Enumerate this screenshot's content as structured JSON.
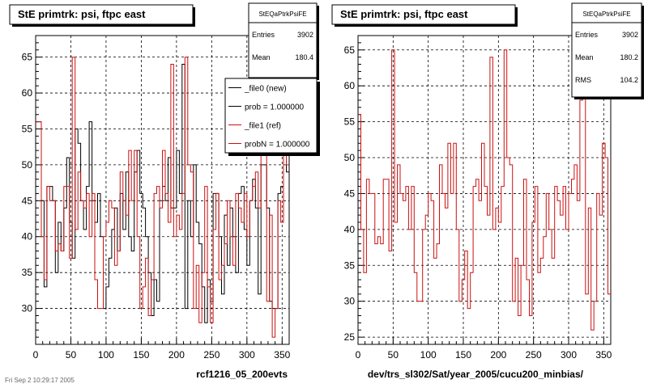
{
  "colors": {
    "file0": "#000000",
    "file1": "#cc1111",
    "grid": "#000000",
    "frame": "#000000"
  },
  "chart_data": [
    {
      "type": "histogram",
      "title": "StE primtrk: psi, ftpc east",
      "xlabel": "rcf1216_05_200evts",
      "xlim": [
        0,
        360
      ],
      "ylim": [
        25,
        68
      ],
      "xticks": [
        0,
        50,
        100,
        150,
        200,
        250,
        300,
        350
      ],
      "yticks": [
        30,
        35,
        40,
        45,
        50,
        55,
        60,
        65
      ],
      "grid": true,
      "stats": {
        "name": "StEQaPtrkPsiFE",
        "rows": [
          {
            "label": "Entries",
            "value": "3902"
          },
          {
            "label": "Mean",
            "value": "180.4"
          }
        ]
      },
      "legend": [
        {
          "text": "_file0 (new)",
          "color": "#000000"
        },
        {
          "text": "prob = 1.000000",
          "color": "#000000"
        },
        {
          "text": "_file1 (ref)",
          "color": "#cc1111"
        },
        {
          "text": "probN = 1.000000",
          "color": "#cc1111"
        }
      ],
      "bin_width": 4,
      "series": [
        {
          "name": "_file0 (new)",
          "color": "#000000",
          "values": [
            56,
            56,
            45,
            33,
            47,
            47,
            45,
            35,
            42,
            38,
            44,
            51,
            42,
            37,
            55,
            53,
            45,
            41,
            47,
            56,
            45,
            42,
            46,
            40,
            30,
            33,
            37,
            41,
            44,
            38,
            46,
            41,
            49,
            40,
            38,
            49,
            52,
            46,
            44,
            40,
            35,
            29,
            34,
            31,
            45,
            47,
            45,
            51,
            44,
            44,
            52,
            46,
            64,
            30,
            45,
            40,
            50,
            42,
            39,
            33,
            28,
            34,
            31,
            46,
            46,
            40,
            32,
            43,
            36,
            44,
            40,
            35,
            46,
            47,
            41,
            36,
            45,
            48,
            44,
            32,
            50,
            50,
            44,
            31,
            30,
            30,
            46,
            47,
            53,
            49
          ]
        },
        {
          "name": "_file1 (ref)",
          "color": "#cc1111",
          "values": [
            56,
            56,
            40,
            34,
            47,
            45,
            45,
            38,
            39,
            38,
            47,
            47,
            37,
            65,
            41,
            49,
            45,
            44,
            46,
            40,
            46,
            34,
            30,
            30,
            40,
            42,
            45,
            44,
            36,
            38,
            49,
            45,
            43,
            52,
            45,
            52,
            40,
            30,
            33,
            37,
            29,
            34,
            46,
            47,
            44,
            52,
            46,
            42,
            64,
            40,
            43,
            41,
            46,
            65,
            50,
            49,
            30,
            36,
            28,
            35,
            47,
            33,
            28,
            41,
            46,
            34,
            36,
            39,
            45,
            40,
            36,
            46,
            44,
            42,
            46,
            40,
            45,
            47,
            49,
            44,
            58,
            60,
            31,
            43,
            26,
            30,
            45,
            42,
            52,
            50
          ]
        }
      ]
    },
    {
      "type": "histogram",
      "title": "StE primtrk: psi, ftpc east",
      "xlabel": "dev/trs_sl302/Sat/year_2005/cucu200_minbias/",
      "xlim": [
        0,
        360
      ],
      "ylim": [
        24,
        67
      ],
      "xticks": [
        0,
        50,
        100,
        150,
        200,
        250,
        300,
        350
      ],
      "yticks": [
        25,
        30,
        35,
        40,
        45,
        50,
        55,
        60,
        65
      ],
      "grid": true,
      "stats": {
        "name": "StEQaPtrkPsiFE",
        "rows": [
          {
            "label": "Entries",
            "value": "3902"
          },
          {
            "label": "Mean",
            "value": "180.2"
          },
          {
            "label": "RMS",
            "value": "104.2"
          }
        ]
      },
      "legend": [],
      "bin_width": 4,
      "series": [
        {
          "name": "_file1 (ref)",
          "color": "#cc1111",
          "values": [
            56,
            40,
            34,
            47,
            45,
            45,
            38,
            39,
            38,
            47,
            47,
            37,
            65,
            41,
            49,
            45,
            44,
            46,
            40,
            46,
            34,
            30,
            30,
            40,
            42,
            45,
            44,
            36,
            38,
            49,
            45,
            43,
            52,
            45,
            52,
            40,
            30,
            33,
            37,
            29,
            34,
            46,
            47,
            44,
            52,
            46,
            42,
            64,
            40,
            43,
            41,
            46,
            65,
            50,
            49,
            30,
            36,
            28,
            35,
            47,
            33,
            28,
            41,
            46,
            34,
            36,
            39,
            45,
            40,
            36,
            46,
            44,
            42,
            46,
            40,
            45,
            47,
            49,
            44,
            58,
            60,
            31,
            43,
            26,
            30,
            45,
            42,
            52,
            50,
            31
          ]
        }
      ]
    }
  ],
  "footer_text": "Fri Sep  2 10:29:17 2005"
}
